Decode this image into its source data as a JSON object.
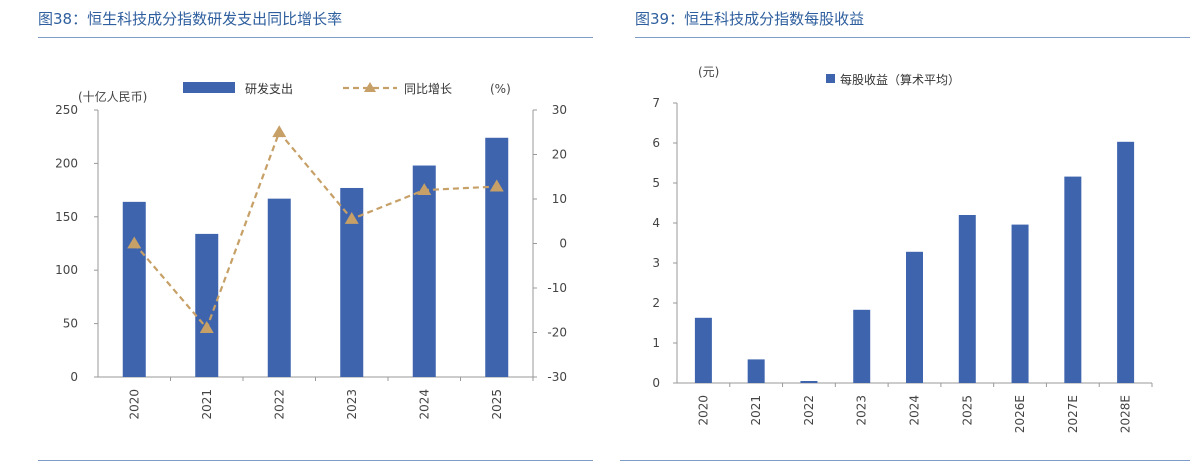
{
  "figures": [
    {
      "title": "图38：恒生科技成分指数研发支出同比增长率"
    },
    {
      "title": "图39：恒生科技成分指数每股收益"
    }
  ],
  "colors": {
    "bar": "#3e64ae",
    "line": "#c7a067",
    "negative_tick": "#e8201c",
    "title": "#2f5f9e",
    "rule": "#7f9cc6"
  },
  "chart_data": [
    {
      "type": "bar",
      "categories": [
        "2020",
        "2021",
        "2022",
        "2023",
        "2024",
        "2025"
      ],
      "series": [
        {
          "name": "研发支出",
          "type": "bar",
          "axis": "left",
          "values": [
            164,
            134,
            167,
            177,
            198,
            224
          ]
        },
        {
          "name": "同比增长",
          "type": "line",
          "axis": "right",
          "marker": "triangle",
          "values": [
            0,
            -19,
            25,
            5.5,
            12,
            12.8
          ]
        }
      ],
      "ylabel": "(十亿人民币)",
      "ylabel_right": "(%)",
      "ylim": [
        0,
        250
      ],
      "yticks": [
        0,
        50,
        100,
        150,
        200,
        250
      ],
      "ylim_right": [
        -30,
        30
      ],
      "yticks_right": [
        -30,
        -20,
        -10,
        0,
        10,
        20,
        30
      ],
      "legend_position": "top",
      "grid": false
    },
    {
      "type": "bar",
      "categories": [
        "2020",
        "2021",
        "2022",
        "2023",
        "2024",
        "2025",
        "2026E",
        "2027E",
        "2028E"
      ],
      "series": [
        {
          "name": "每股收益（算术平均）",
          "values": [
            1.63,
            0.59,
            0.05,
            1.83,
            3.28,
            4.2,
            3.96,
            5.16,
            6.03
          ]
        }
      ],
      "ylabel": "(元)",
      "ylim": [
        0,
        7
      ],
      "yticks": [
        0,
        1,
        2,
        3,
        4,
        5,
        6,
        7
      ],
      "legend_position": "top",
      "grid": false
    }
  ]
}
